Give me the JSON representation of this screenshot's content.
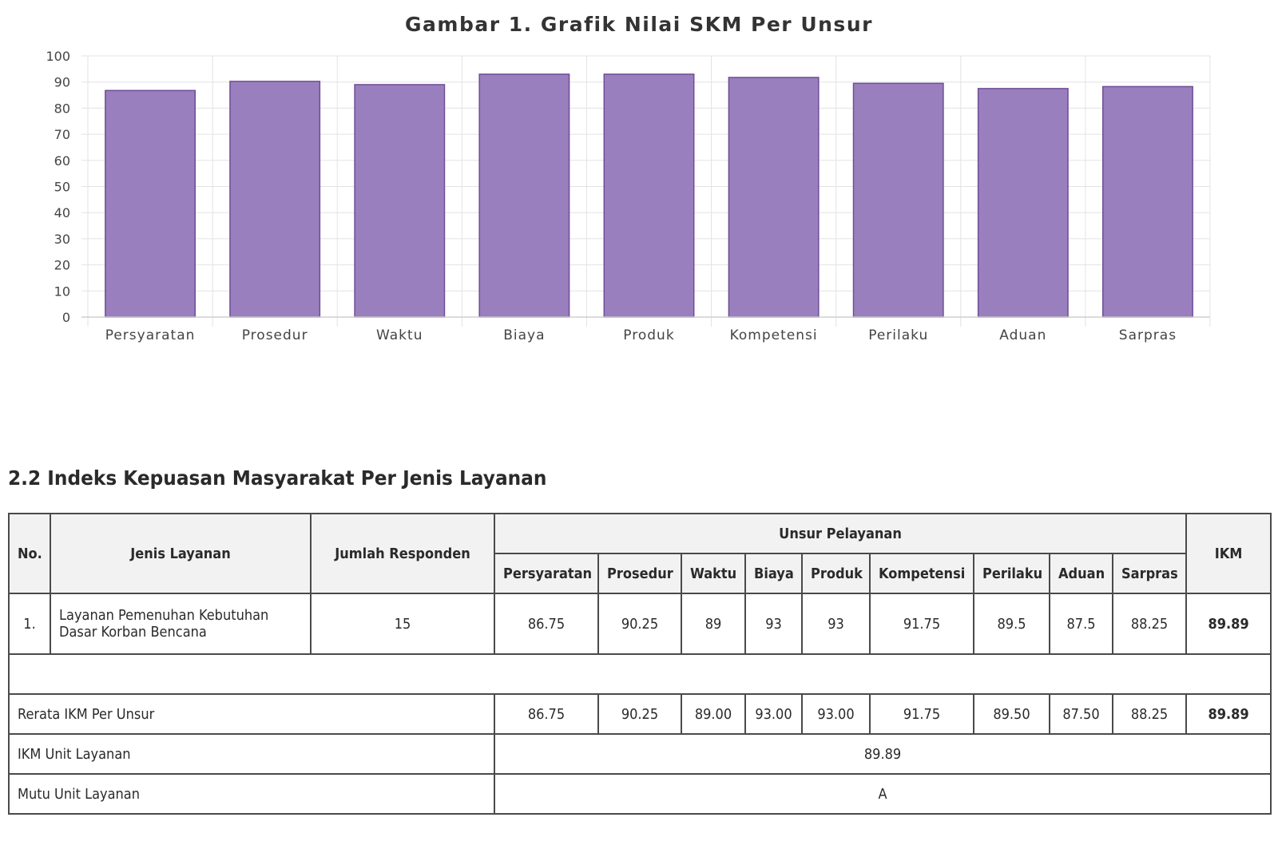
{
  "chart_data": {
    "type": "bar",
    "title": "Gambar 1. Grafik Nilai SKM Per Unsur",
    "categories": [
      "Persyaratan",
      "Prosedur",
      "Waktu",
      "Biaya",
      "Produk",
      "Kompetensi",
      "Perilaku",
      "Aduan",
      "Sarpras"
    ],
    "values": [
      86.75,
      90.25,
      89,
      93,
      93,
      91.75,
      89.5,
      87.5,
      88.25
    ],
    "ylim": [
      0,
      100
    ],
    "yticks": [
      "0",
      "10",
      "20",
      "30",
      "40",
      "50",
      "60",
      "70",
      "80",
      "90",
      "100"
    ],
    "xlabel": "",
    "ylabel": "",
    "bar_color": "#9a7fbe",
    "bar_edge_color": "#6e4d96",
    "grid": true
  },
  "section": {
    "heading": "2.2 Indeks Kepuasan Masyarakat Per Jenis Layanan"
  },
  "table": {
    "headers": {
      "no": "No.",
      "jenis": "Jenis Layanan",
      "jumlah": "Jumlah Responden",
      "unsur": "Unsur Pelayanan",
      "ikm": "IKM",
      "unsur_cols": [
        "Persyaratan",
        "Prosedur",
        "Waktu",
        "Biaya",
        "Produk",
        "Kompetensi",
        "Perilaku",
        "Aduan",
        "Sarpras"
      ]
    },
    "row1": {
      "no": "1.",
      "jenis_line1": "Layanan Pemenuhan Kebutuhan",
      "jenis_line2": "Dasar Korban Bencana",
      "responden": "15",
      "values": [
        "86.75",
        "90.25",
        "89",
        "93",
        "93",
        "91.75",
        "89.5",
        "87.5",
        "88.25"
      ],
      "ikm": "89.89"
    },
    "rerata": {
      "label": "Rerata IKM Per Unsur",
      "values": [
        "86.75",
        "90.25",
        "89.00",
        "93.00",
        "93.00",
        "91.75",
        "89.50",
        "87.50",
        "88.25"
      ],
      "ikm": "89.89"
    },
    "ikm_unit": {
      "label": "IKM Unit Layanan",
      "value": "89.89"
    },
    "mutu_unit": {
      "label": "Mutu Unit Layanan",
      "value": "A"
    }
  }
}
